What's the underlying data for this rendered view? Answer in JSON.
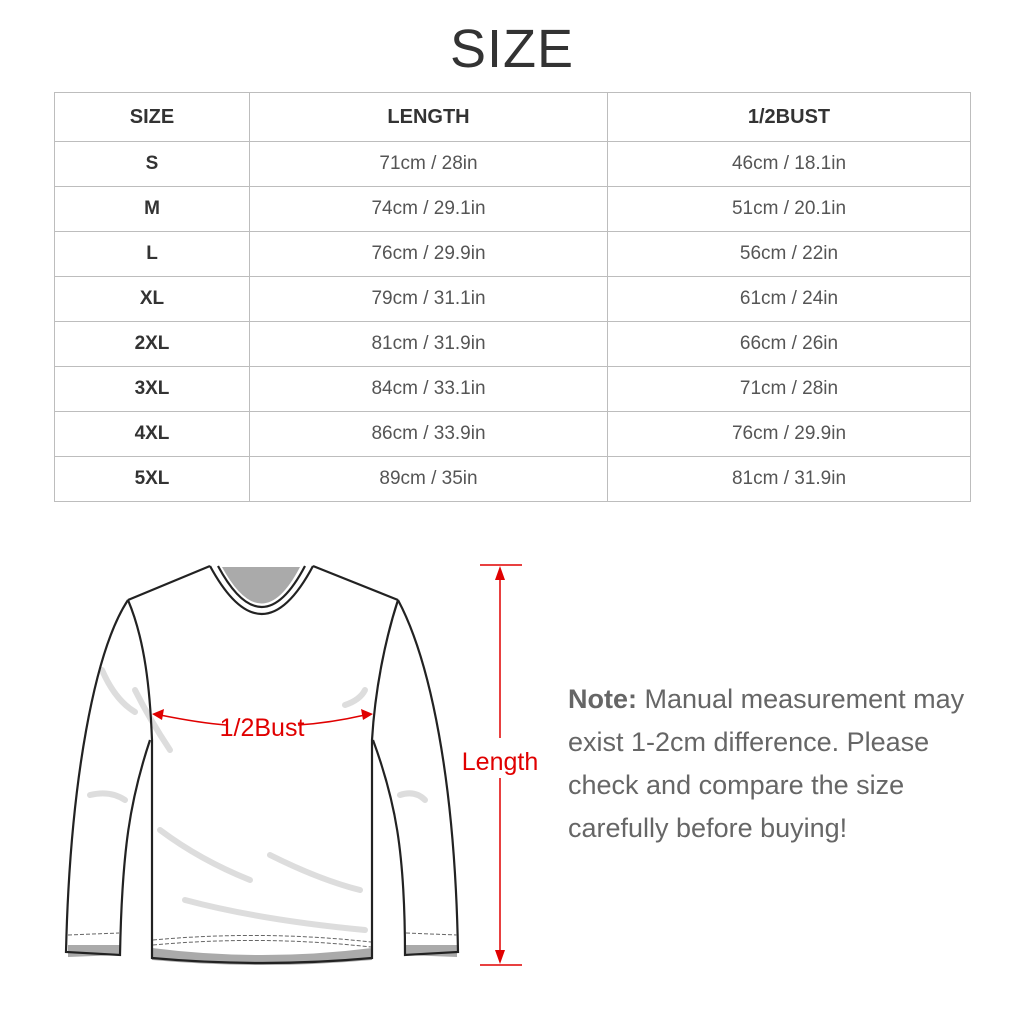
{
  "title": "SIZE",
  "table": {
    "headers": [
      "SIZE",
      "LENGTH",
      "1/2BUST"
    ],
    "rows": [
      [
        "S",
        "71cm / 28in",
        "46cm / 18.1in"
      ],
      [
        "M",
        "74cm / 29.1in",
        "51cm / 20.1in"
      ],
      [
        "L",
        "76cm / 29.9in",
        "56cm / 22in"
      ],
      [
        "XL",
        "79cm / 31.1in",
        "61cm / 24in"
      ],
      [
        "2XL",
        "81cm / 31.9in",
        "66cm / 26in"
      ],
      [
        "3XL",
        "84cm / 33.1in",
        "71cm / 28in"
      ],
      [
        "4XL",
        "86cm / 33.9in",
        "76cm / 29.9in"
      ],
      [
        "5XL",
        "89cm / 35in",
        "81cm / 31.9in"
      ]
    ]
  },
  "diagram": {
    "bust_label": "1/2Bust",
    "length_label": "Length",
    "measure_color": "#e00000"
  },
  "note": {
    "label": "Note:",
    "text": "Manual measurement may exist 1-2cm difference. Please check and compare the size carefully before buying!"
  }
}
